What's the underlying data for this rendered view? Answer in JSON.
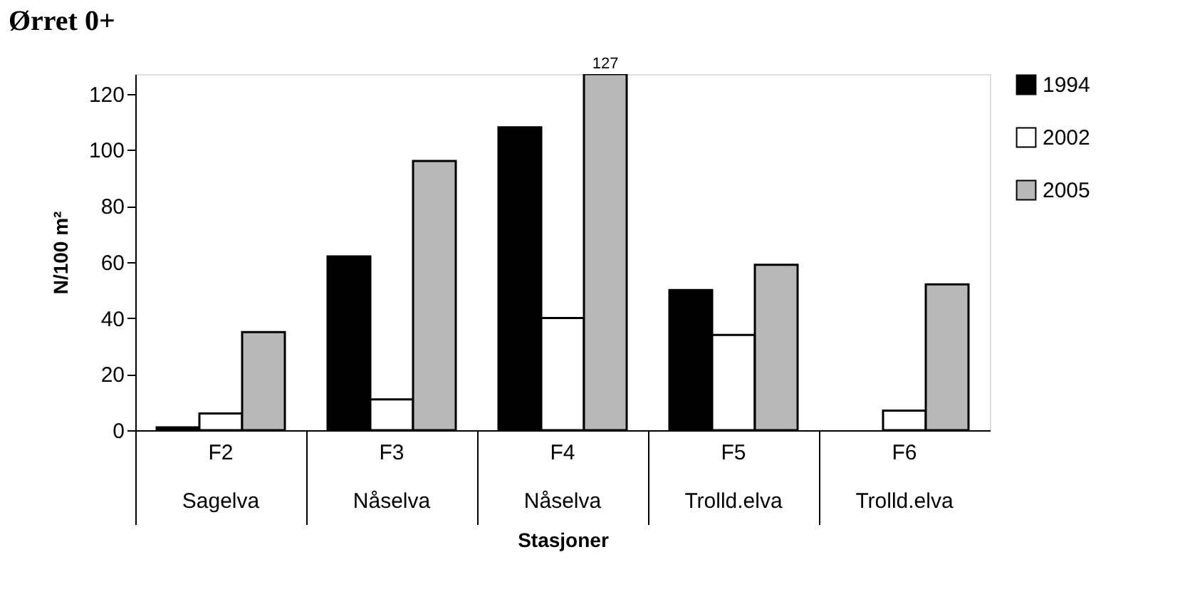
{
  "chart_data": {
    "type": "bar",
    "title": "Ørret 0+",
    "xlabel": "Stasjoner",
    "ylabel": "N/100 m²",
    "categories": [
      "F2\nSagelva",
      "F3\nNåselva",
      "F4\nNåselva",
      "F5\nTrolld.elva",
      "F6\nTrolld.elva"
    ],
    "series": [
      {
        "name": "1994",
        "color": "#000000",
        "values": [
          1,
          62,
          108,
          50,
          null
        ]
      },
      {
        "name": "2002",
        "color": "#ffffff",
        "values": [
          6,
          11,
          40,
          34,
          7
        ]
      },
      {
        "name": "2005",
        "color": "#b8b8b8",
        "values": [
          35,
          96,
          127,
          59,
          52
        ],
        "value_labels": [
          null,
          null,
          "127",
          null,
          null
        ]
      }
    ],
    "ylim": [
      0,
      127
    ],
    "yticks": [
      0,
      20,
      40,
      60,
      80,
      100,
      120
    ],
    "grid": false,
    "legend": "right"
  }
}
